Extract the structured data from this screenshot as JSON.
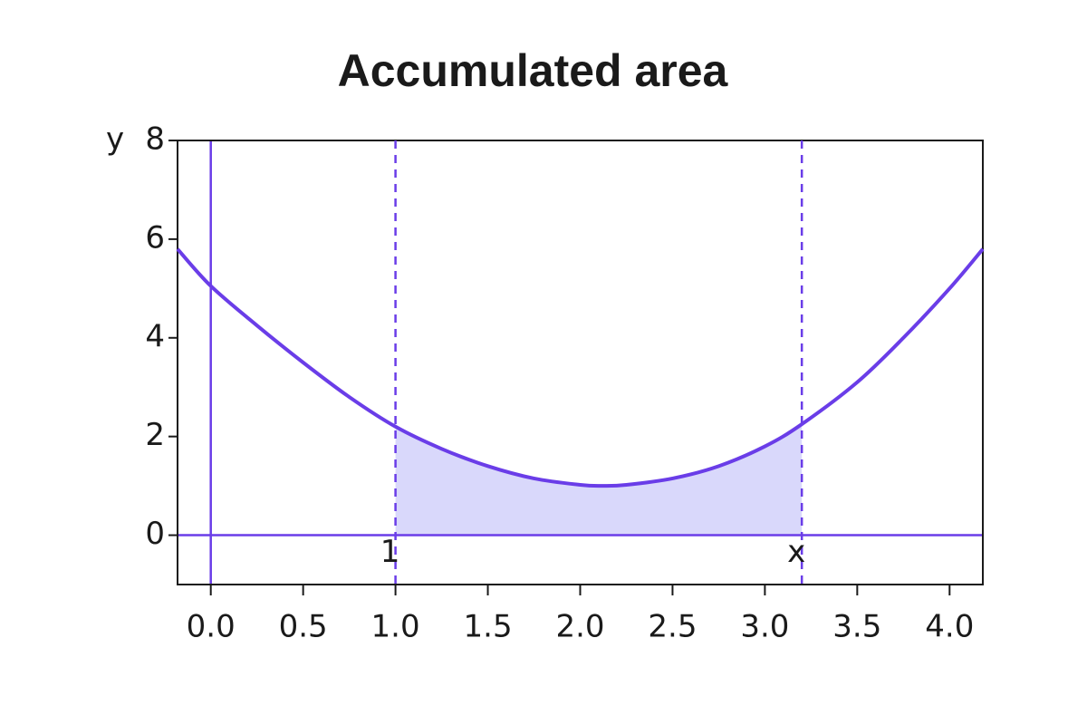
{
  "chart_data": {
    "type": "line",
    "title": "Accumulated area",
    "ylabel": "y",
    "x": [
      -0.18,
      0,
      0.25,
      0.5,
      0.75,
      1,
      1.25,
      1.5,
      1.75,
      2,
      2.12,
      2.25,
      2.5,
      2.75,
      3,
      3.2,
      3.5,
      3.75,
      4,
      4.18
    ],
    "series": [
      {
        "color": "#6a3de8",
        "values": [
          5.8,
          5.05,
          4.25,
          3.5,
          2.8,
          2.2,
          1.75,
          1.4,
          1.15,
          1.02,
          1.0,
          1.02,
          1.15,
          1.4,
          1.8,
          2.25,
          3.1,
          4.0,
          5.0,
          5.8
        ]
      }
    ],
    "shade": {
      "from": 1,
      "to": 3.2,
      "color": "#d9d8fb"
    },
    "markers": [
      {
        "value": 1,
        "label": "1"
      },
      {
        "value": 3.2,
        "label": "x"
      }
    ],
    "xlim": [
      -0.18,
      4.18
    ],
    "ylim": [
      -1,
      8
    ],
    "xticks": [
      {
        "value": 0,
        "label": "0.0"
      },
      0.5,
      {
        "value": 1,
        "label": "1.0"
      },
      1.5,
      {
        "value": 2,
        "label": "2.0"
      },
      2.5,
      {
        "value": 3,
        "label": "3.0"
      },
      3.5,
      {
        "value": 4,
        "label": "4.0"
      }
    ],
    "yticks": [
      0,
      2,
      4,
      6,
      8
    ]
  }
}
